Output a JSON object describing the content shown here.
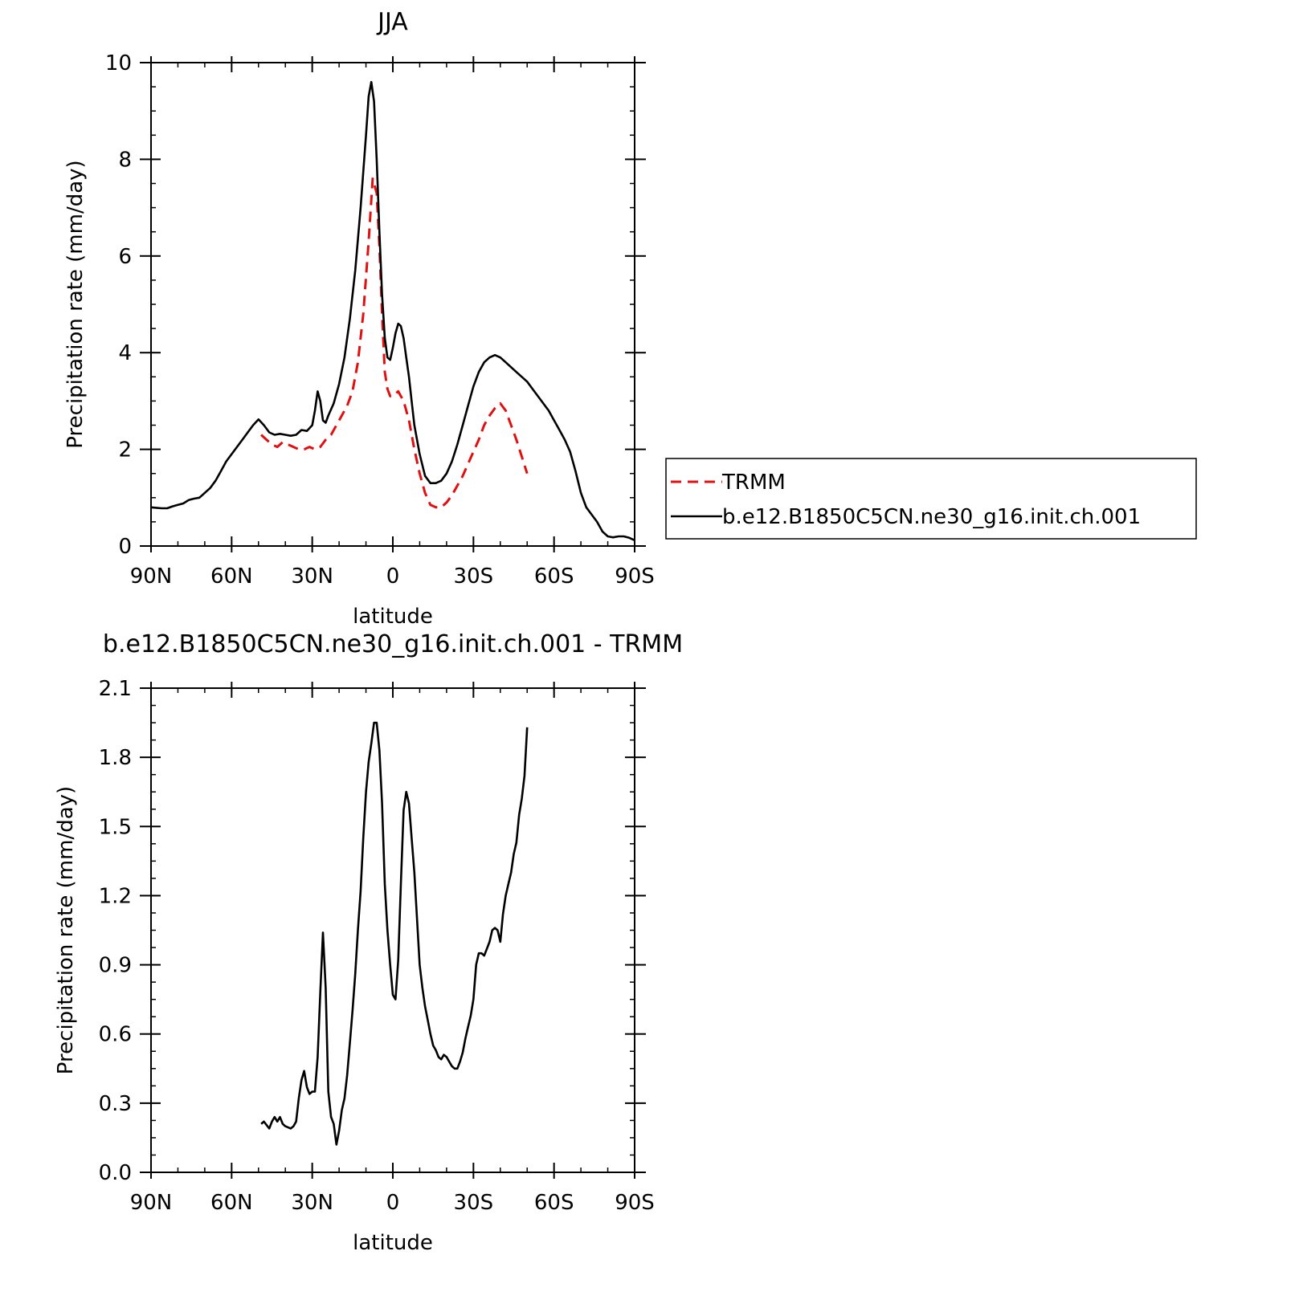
{
  "chart_data": [
    {
      "type": "line",
      "title": "JJA",
      "xlabel": "latitude",
      "ylabel": "Precipitation rate (mm/day)",
      "xlim": [
        -90,
        90
      ],
      "ylim": [
        0,
        10
      ],
      "xticks": [
        {
          "value": -90,
          "label": "90N"
        },
        {
          "value": -60,
          "label": "60N"
        },
        {
          "value": -30,
          "label": "30N"
        },
        {
          "value": 0,
          "label": "0"
        },
        {
          "value": 30,
          "label": "30S"
        },
        {
          "value": 60,
          "label": "60S"
        },
        {
          "value": 90,
          "label": "90S"
        }
      ],
      "yticks": [
        {
          "value": 0,
          "label": "0"
        },
        {
          "value": 2,
          "label": "2"
        },
        {
          "value": 4,
          "label": "4"
        },
        {
          "value": 6,
          "label": "6"
        },
        {
          "value": 8,
          "label": "8"
        },
        {
          "value": 10,
          "label": "10"
        }
      ],
      "grid": false,
      "legend_position": "right",
      "series": [
        {
          "name": "TRMM",
          "color": "#e01010",
          "dashed": true,
          "x": [
            -49,
            -47,
            -45,
            -43,
            -41,
            -39,
            -37,
            -35,
            -33,
            -31,
            -29,
            -27,
            -25,
            -23,
            -21,
            -19,
            -17,
            -15,
            -13,
            -11,
            -9,
            -7.5,
            -6,
            -5,
            -4,
            -3,
            -2,
            -1,
            0,
            1,
            2,
            3,
            4,
            6,
            8,
            10,
            12,
            14,
            16,
            18,
            20,
            22,
            24,
            26,
            28,
            30,
            32,
            34,
            36,
            38,
            40,
            42,
            44,
            46,
            48,
            50
          ],
          "y": [
            2.3,
            2.2,
            2.1,
            2.05,
            2.15,
            2.1,
            2.05,
            2.0,
            2.0,
            2.05,
            2.0,
            2.05,
            2.2,
            2.3,
            2.5,
            2.7,
            2.9,
            3.2,
            3.8,
            4.8,
            6.3,
            7.6,
            7.3,
            6.2,
            4.8,
            3.6,
            3.25,
            3.1,
            3.1,
            3.15,
            3.2,
            3.1,
            3.0,
            2.6,
            2.0,
            1.5,
            1.1,
            0.85,
            0.8,
            0.8,
            0.9,
            1.05,
            1.25,
            1.45,
            1.7,
            1.95,
            2.2,
            2.5,
            2.7,
            2.85,
            2.95,
            2.8,
            2.5,
            2.2,
            1.85,
            1.5
          ]
        },
        {
          "name": "b.e12.B1850C5CN.ne30_g16.init.ch.001",
          "color": "#000000",
          "dashed": false,
          "x": [
            -90,
            -88,
            -86,
            -84,
            -82,
            -80,
            -78,
            -76,
            -74,
            -72,
            -70,
            -68,
            -66,
            -64,
            -62,
            -60,
            -58,
            -56,
            -54,
            -52,
            -50,
            -48,
            -46,
            -44,
            -42,
            -40,
            -38,
            -36,
            -34,
            -32,
            -30,
            -29,
            -28,
            -27,
            -26,
            -25,
            -24,
            -22,
            -20,
            -18,
            -16,
            -14,
            -12,
            -10,
            -9,
            -8,
            -7,
            -6,
            -5,
            -4,
            -3,
            -2,
            -1,
            0,
            1,
            2,
            3,
            4,
            5,
            6,
            7,
            8,
            10,
            12,
            14,
            16,
            18,
            20,
            22,
            24,
            26,
            28,
            30,
            32,
            34,
            36,
            38,
            40,
            42,
            44,
            46,
            48,
            50,
            52,
            54,
            56,
            58,
            60,
            62,
            64,
            66,
            68,
            70,
            72,
            74,
            76,
            78,
            80,
            82,
            84,
            86,
            88,
            90
          ],
          "y": [
            0.8,
            0.79,
            0.78,
            0.78,
            0.82,
            0.85,
            0.88,
            0.95,
            0.98,
            1.0,
            1.1,
            1.2,
            1.35,
            1.55,
            1.75,
            1.9,
            2.05,
            2.2,
            2.35,
            2.5,
            2.62,
            2.5,
            2.35,
            2.3,
            2.32,
            2.3,
            2.28,
            2.3,
            2.4,
            2.38,
            2.5,
            2.8,
            3.2,
            3.0,
            2.6,
            2.55,
            2.7,
            2.95,
            3.35,
            3.9,
            4.7,
            5.7,
            7.0,
            8.5,
            9.3,
            9.6,
            9.2,
            8.0,
            6.5,
            5.2,
            4.3,
            3.9,
            3.85,
            4.1,
            4.4,
            4.6,
            4.55,
            4.3,
            3.9,
            3.5,
            3.0,
            2.5,
            1.9,
            1.45,
            1.3,
            1.3,
            1.35,
            1.5,
            1.75,
            2.1,
            2.5,
            2.9,
            3.3,
            3.6,
            3.8,
            3.9,
            3.95,
            3.9,
            3.8,
            3.7,
            3.6,
            3.5,
            3.4,
            3.25,
            3.1,
            2.95,
            2.8,
            2.6,
            2.4,
            2.2,
            1.95,
            1.55,
            1.1,
            0.8,
            0.65,
            0.5,
            0.3,
            0.2,
            0.18,
            0.2,
            0.2,
            0.17,
            0.12
          ]
        }
      ]
    },
    {
      "type": "line",
      "title": "b.e12.B1850C5CN.ne30_g16.init.ch.001 - TRMM",
      "xlabel": "latitude",
      "ylabel": "Precipitation rate (mm/day)",
      "xlim": [
        -90,
        90
      ],
      "ylim": [
        0,
        2.1
      ],
      "xticks": [
        {
          "value": -90,
          "label": "90N"
        },
        {
          "value": -60,
          "label": "60N"
        },
        {
          "value": -30,
          "label": "30N"
        },
        {
          "value": 0,
          "label": "0"
        },
        {
          "value": 30,
          "label": "30S"
        },
        {
          "value": 60,
          "label": "60S"
        },
        {
          "value": 90,
          "label": "90S"
        }
      ],
      "yticks": [
        {
          "value": 0,
          "label": "0.0"
        },
        {
          "value": 0.3,
          "label": "0.3"
        },
        {
          "value": 0.6,
          "label": "0.6"
        },
        {
          "value": 0.9,
          "label": "0.9"
        },
        {
          "value": 1.2,
          "label": "1.2"
        },
        {
          "value": 1.5,
          "label": "1.5"
        },
        {
          "value": 1.8,
          "label": "1.8"
        },
        {
          "value": 2.1,
          "label": "2.1"
        }
      ],
      "grid": false,
      "series": [
        {
          "color": "#000000",
          "dashed": false,
          "x": [
            -49,
            -48,
            -46,
            -45,
            -44,
            -43,
            -42,
            -41,
            -40,
            -38,
            -37,
            -36,
            -35,
            -34,
            -33,
            -32,
            -31,
            -30,
            -29,
            -28,
            -27,
            -26,
            -25,
            -24,
            -23,
            -22,
            -21,
            -20,
            -19,
            -18,
            -17,
            -16,
            -15,
            -14,
            -13,
            -12,
            -11,
            -10,
            -9,
            -8,
            -7,
            -6,
            -5,
            -4,
            -3,
            -2,
            -1,
            0,
            1,
            2,
            3,
            4,
            5,
            6,
            7,
            8,
            9,
            10,
            11,
            12,
            13,
            14,
            15,
            16,
            17,
            18,
            19,
            20,
            21,
            22,
            23,
            24,
            25,
            26,
            27,
            28,
            29,
            30,
            31,
            32,
            33,
            34,
            35,
            36,
            37,
            38,
            39,
            40,
            41,
            42,
            43,
            44,
            45,
            46,
            47,
            48,
            49,
            50
          ],
          "y": [
            0.21,
            0.22,
            0.19,
            0.22,
            0.24,
            0.22,
            0.24,
            0.21,
            0.2,
            0.19,
            0.2,
            0.22,
            0.32,
            0.4,
            0.44,
            0.37,
            0.34,
            0.35,
            0.35,
            0.5,
            0.78,
            1.04,
            0.8,
            0.35,
            0.24,
            0.21,
            0.12,
            0.18,
            0.27,
            0.32,
            0.42,
            0.56,
            0.7,
            0.86,
            1.05,
            1.22,
            1.45,
            1.65,
            1.78,
            1.86,
            1.95,
            1.95,
            1.83,
            1.6,
            1.25,
            1.05,
            0.9,
            0.77,
            0.75,
            0.92,
            1.25,
            1.57,
            1.65,
            1.6,
            1.45,
            1.3,
            1.1,
            0.9,
            0.8,
            0.72,
            0.66,
            0.6,
            0.55,
            0.53,
            0.5,
            0.49,
            0.51,
            0.5,
            0.48,
            0.46,
            0.45,
            0.45,
            0.48,
            0.52,
            0.58,
            0.63,
            0.68,
            0.75,
            0.9,
            0.95,
            0.95,
            0.94,
            0.97,
            1.0,
            1.05,
            1.06,
            1.05,
            1.0,
            1.12,
            1.2,
            1.25,
            1.3,
            1.38,
            1.43,
            1.55,
            1.62,
            1.72,
            1.93
          ]
        }
      ]
    }
  ]
}
